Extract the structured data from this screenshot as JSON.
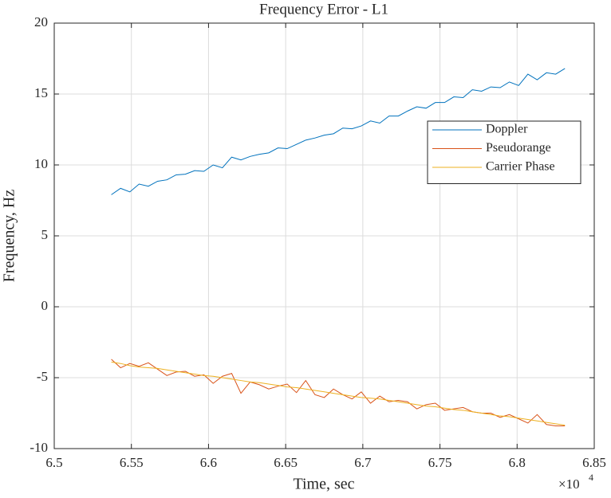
{
  "chart_data": {
    "type": "line",
    "title": "Frequency Error - L1",
    "xlabel": "Time, sec",
    "ylabel": "Frequency, Hz",
    "x_exponent": {
      "base": "×10",
      "power": "4"
    },
    "x": [
      65370,
      65430,
      65490,
      65550,
      65610,
      65670,
      65730,
      65790,
      65850,
      65910,
      65970,
      66030,
      66090,
      66150,
      66210,
      66270,
      66330,
      66390,
      66450,
      66510,
      66570,
      66630,
      66690,
      66750,
      66810,
      66870,
      66930,
      66990,
      67050,
      67110,
      67170,
      67230,
      67290,
      67350,
      67410,
      67470,
      67530,
      67590,
      67650,
      67710,
      67770,
      67830,
      67890,
      67950,
      68010,
      68070,
      68130,
      68190,
      68250,
      68310
    ],
    "series": [
      {
        "name": "Doppler",
        "color": "#0072BD",
        "values": [
          7.9,
          8.35,
          8.1,
          8.65,
          8.5,
          8.85,
          8.95,
          9.3,
          9.35,
          9.6,
          9.55,
          10.0,
          9.8,
          10.55,
          10.35,
          10.6,
          10.75,
          10.85,
          11.2,
          11.15,
          11.45,
          11.75,
          11.9,
          12.1,
          12.2,
          12.6,
          12.55,
          12.75,
          13.1,
          12.95,
          13.45,
          13.45,
          13.8,
          14.1,
          14.0,
          14.4,
          14.4,
          14.8,
          14.75,
          15.3,
          15.2,
          15.5,
          15.45,
          15.85,
          15.6,
          16.4,
          16.0,
          16.5,
          16.4,
          16.8
        ]
      },
      {
        "name": "Pseudorange",
        "color": "#D95319",
        "values": [
          -3.7,
          -4.3,
          -4.0,
          -4.2,
          -3.95,
          -4.4,
          -4.85,
          -4.6,
          -4.55,
          -4.9,
          -4.8,
          -5.4,
          -4.9,
          -4.7,
          -6.1,
          -5.3,
          -5.5,
          -5.8,
          -5.6,
          -5.45,
          -6.05,
          -5.2,
          -6.2,
          -6.4,
          -5.8,
          -6.2,
          -6.5,
          -6.0,
          -6.8,
          -6.3,
          -6.7,
          -6.6,
          -6.7,
          -7.2,
          -6.9,
          -6.8,
          -7.3,
          -7.2,
          -7.1,
          -7.4,
          -7.5,
          -7.5,
          -7.8,
          -7.6,
          -7.9,
          -8.2,
          -7.6,
          -8.3,
          -8.4,
          -8.4
        ]
      },
      {
        "name": "Carrier Phase",
        "color": "#EDB120",
        "values": [
          -3.9,
          -4.0,
          -4.15,
          -4.25,
          -4.3,
          -4.35,
          -4.45,
          -4.55,
          -4.65,
          -4.75,
          -4.85,
          -4.9,
          -5.0,
          -5.1,
          -5.2,
          -5.3,
          -5.35,
          -5.45,
          -5.55,
          -5.65,
          -5.7,
          -5.8,
          -5.9,
          -6.0,
          -6.1,
          -6.2,
          -6.3,
          -6.4,
          -6.45,
          -6.5,
          -6.6,
          -6.7,
          -6.8,
          -6.9,
          -7.0,
          -7.05,
          -7.15,
          -7.25,
          -7.3,
          -7.4,
          -7.5,
          -7.6,
          -7.7,
          -7.75,
          -7.85,
          -7.95,
          -8.05,
          -8.15,
          -8.25,
          -8.35
        ]
      }
    ],
    "xlim": [
      65000,
      68500
    ],
    "xticks": [
      {
        "value": 65000,
        "label": "6.5"
      },
      {
        "value": 65500,
        "label": "6.55"
      },
      {
        "value": 66000,
        "label": "6.6"
      },
      {
        "value": 66500,
        "label": "6.65"
      },
      {
        "value": 67000,
        "label": "6.7"
      },
      {
        "value": 67500,
        "label": "6.75"
      },
      {
        "value": 68000,
        "label": "6.8"
      },
      {
        "value": 68500,
        "label": "6.85"
      }
    ],
    "ylim": [
      -10,
      20
    ],
    "yticks": [
      -10,
      -5,
      0,
      5,
      10,
      15,
      20
    ],
    "grid": true
  }
}
